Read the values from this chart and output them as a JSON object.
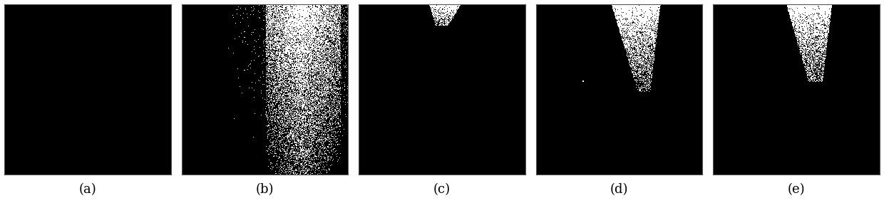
{
  "labels": [
    "(a)",
    "(b)",
    "(c)",
    "(d)",
    "(e)"
  ],
  "background_color": "#ffffff",
  "label_fontsize": 13,
  "fig_width": 12.4,
  "fig_height": 2.99,
  "dpi": 100,
  "n_panels": 5
}
